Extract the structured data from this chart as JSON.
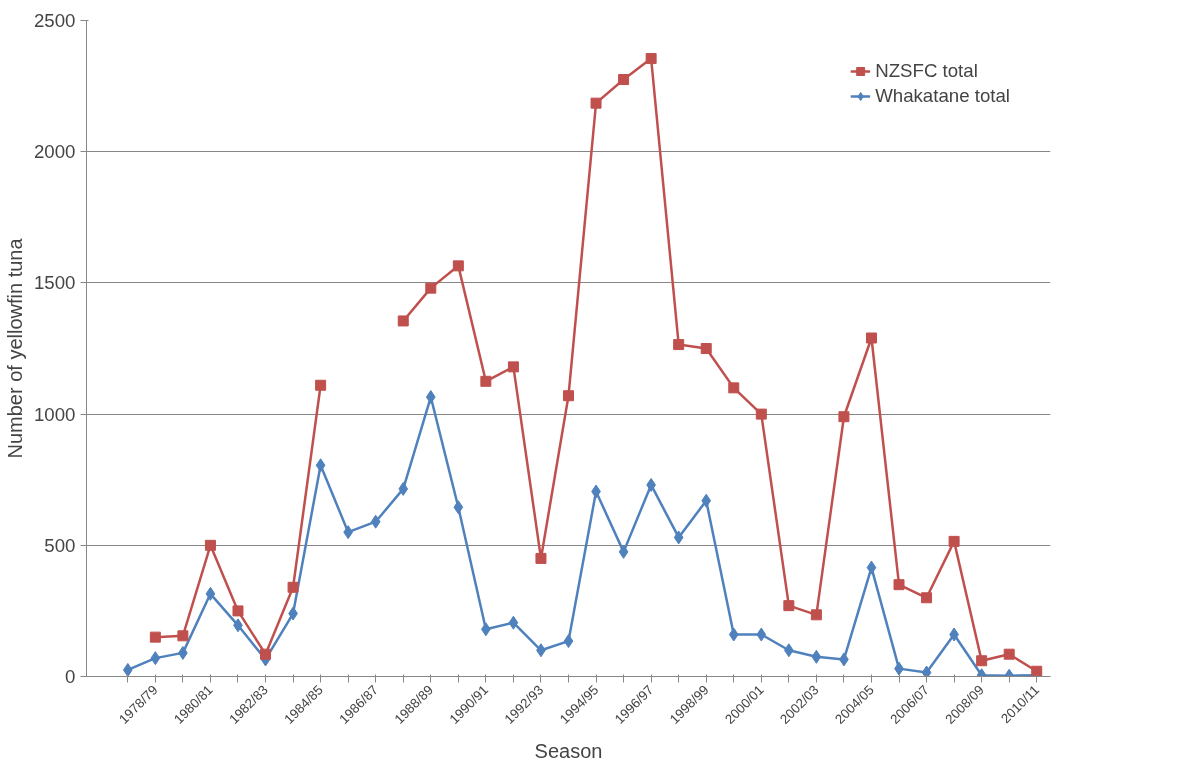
{
  "chart_data": {
    "type": "line",
    "xlabel": "Season",
    "ylabel": "Number of yellowfin tuna",
    "categories": [
      null,
      "1978/79",
      null,
      "1980/81",
      null,
      "1982/83",
      null,
      "1984/85",
      null,
      "1986/87",
      null,
      "1988/89",
      null,
      "1990/91",
      null,
      "1992/93",
      null,
      "1994/95",
      null,
      "1996/97",
      null,
      "1998/99",
      null,
      "2000/01",
      null,
      "2002/03",
      null,
      "2004/05",
      null,
      "2006/07",
      null,
      "2008/09",
      null,
      "2010/11"
    ],
    "series": [
      {
        "name": "NZSFC total",
        "color": "#c0504d",
        "marker": "square",
        "values": [
          null,
          150,
          155,
          500,
          250,
          85,
          340,
          1110,
          null,
          null,
          1355,
          1480,
          1565,
          1125,
          1180,
          450,
          1070,
          2185,
          2275,
          2355,
          1265,
          1250,
          1100,
          1000,
          270,
          235,
          990,
          1290,
          350,
          300,
          515,
          60,
          85,
          20
        ]
      },
      {
        "name": "Whakatane total",
        "color": "#4f81bd",
        "marker": "diamond",
        "values": [
          25,
          70,
          90,
          315,
          195,
          65,
          240,
          805,
          550,
          590,
          715,
          1065,
          645,
          180,
          205,
          100,
          135,
          705,
          475,
          730,
          530,
          670,
          160,
          160,
          100,
          75,
          65,
          415,
          30,
          15,
          160,
          5,
          3,
          5
        ]
      }
    ],
    "ylim": [
      0,
      2500
    ],
    "yticks": [
      0,
      500,
      1000,
      1500,
      2000,
      2500
    ],
    "grid": "y",
    "legend": "top right"
  }
}
